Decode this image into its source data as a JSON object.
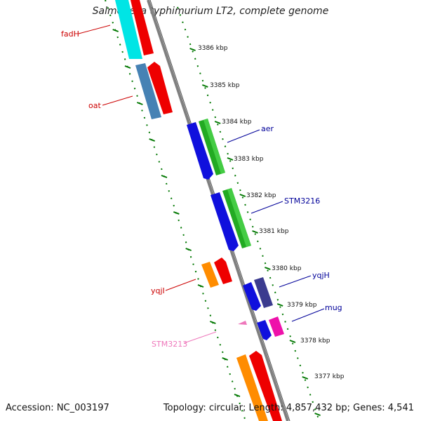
{
  "title": "Salmonella typhimurium LT2, complete genome",
  "accession": "Accession: NC_003197",
  "summary": "Topology: circular; Length: 4,857,432 bp; Genes: 4,541",
  "colors": {
    "backbone": "#808080",
    "tick": "#007700",
    "forward_label": "#cc0000",
    "reverse_label": "#000099",
    "rrna_label": "#ee77bb"
  },
  "kbp_labels": [
    "3386 kbp",
    "3385 kbp",
    "3384 kbp",
    "3383 kbp",
    "3382 kbp",
    "3381 kbp",
    "3380 kbp",
    "3379 kbp",
    "3378 kbp",
    "3377 kbp"
  ],
  "genes": [
    {
      "name": "fadH",
      "color": "red"
    },
    {
      "name": "oat",
      "color": "red"
    },
    {
      "name": "aer",
      "color": "blue"
    },
    {
      "name": "STM3216",
      "color": "blue"
    },
    {
      "name": "yqjH",
      "color": "blue"
    },
    {
      "name": "mug",
      "color": "blue"
    },
    {
      "name": "yqjI",
      "color": "red"
    },
    {
      "name": "STM3213",
      "color": "pink"
    }
  ]
}
